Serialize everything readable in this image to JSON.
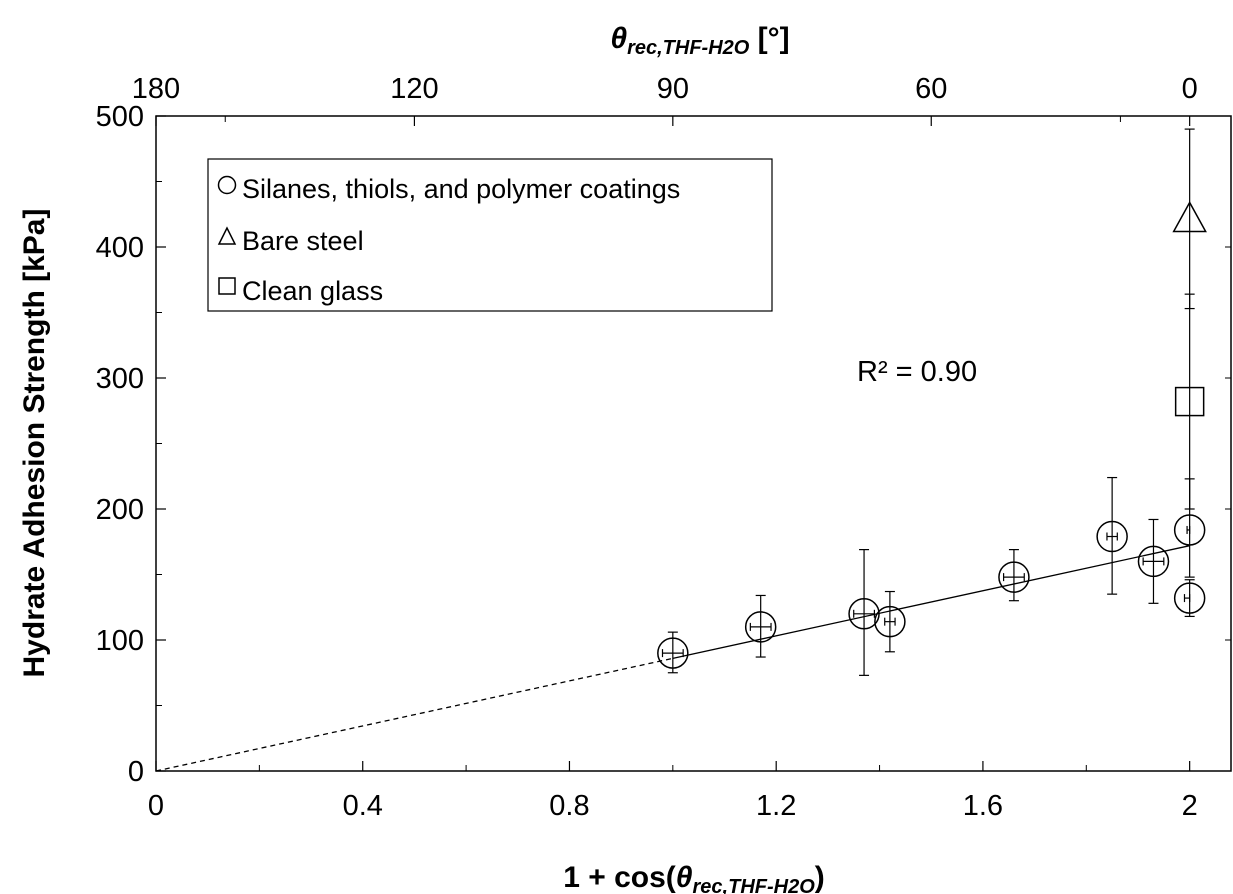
{
  "chart_data": {
    "type": "scatter",
    "title": "",
    "xlabel": "1 + cos(θrec,THF-H2O)",
    "xlabel_parts": {
      "prefix": "1 + cos(",
      "symbol": "θ",
      "subscript": "rec,THF-H2O",
      "suffix": ")"
    },
    "ylabel": "Hydrate Adhesion Strength [kPa]",
    "top_xlabel": "θrec,THF-H2O [°]",
    "top_xlabel_parts": {
      "symbol": "θ",
      "subscript": "rec,THF-H2O",
      "suffix": " [°]"
    },
    "xlim": [
      0,
      2.08
    ],
    "ylim": [
      0,
      500
    ],
    "xticks": [
      0,
      0.4,
      0.8,
      1.2,
      1.6,
      2
    ],
    "xtick_labels": [
      "0",
      "0.4",
      "0.8",
      "1.2",
      "1.6",
      "2"
    ],
    "yticks": [
      0,
      100,
      200,
      300,
      400,
      500
    ],
    "ytick_labels": [
      "0",
      "100",
      "200",
      "300",
      "400",
      "500"
    ],
    "top_xticks_deg": [
      180,
      120,
      90,
      60,
      0
    ],
    "top_xtick_labels": [
      "180",
      "120",
      "90",
      "60",
      "0"
    ],
    "grid": false,
    "legend_position": "top-left",
    "annotation": "R² = 0.90",
    "series": [
      {
        "name": "Silanes, thiols, and polymer coatings",
        "marker": "circle",
        "points": [
          {
            "x": 1.0,
            "y": 90,
            "yerr": [
              75,
              106
            ],
            "xerr": [
              0.98,
              1.02
            ]
          },
          {
            "x": 1.17,
            "y": 110,
            "yerr": [
              87,
              134
            ],
            "xerr": [
              1.15,
              1.19
            ]
          },
          {
            "x": 1.37,
            "y": 120,
            "yerr": [
              73,
              169
            ],
            "xerr": [
              1.35,
              1.39
            ]
          },
          {
            "x": 1.42,
            "y": 114,
            "yerr": [
              91,
              137
            ],
            "xerr": [
              1.41,
              1.43
            ]
          },
          {
            "x": 1.66,
            "y": 148,
            "yerr": [
              130,
              169
            ],
            "xerr": [
              1.64,
              1.68
            ]
          },
          {
            "x": 1.85,
            "y": 179,
            "yerr": [
              135,
              224
            ],
            "xerr": [
              1.84,
              1.86
            ]
          },
          {
            "x": 1.93,
            "y": 160,
            "yerr": [
              128,
              192
            ],
            "xerr": [
              1.91,
              1.95
            ]
          },
          {
            "x": 2.0,
            "y": 184,
            "yerr": [
              148,
              223
            ],
            "xerr": [
              1.995,
              2.0
            ]
          },
          {
            "x": 2.0,
            "y": 132,
            "yerr": [
              118,
              146
            ],
            "xerr": [
              1.99,
              2.0
            ]
          }
        ]
      },
      {
        "name": "Bare steel",
        "marker": "triangle",
        "points": [
          {
            "x": 2.0,
            "y": 421,
            "yerr": [
              353,
              490
            ]
          }
        ]
      },
      {
        "name": "Clean glass",
        "marker": "square",
        "points": [
          {
            "x": 2.0,
            "y": 282,
            "yerr": [
              200,
              364
            ]
          }
        ]
      }
    ],
    "fit_line": {
      "x": [
        1.0,
        2.0
      ],
      "y": [
        86,
        172
      ]
    },
    "extrapolation_line": {
      "x": [
        0,
        1.0
      ],
      "y": [
        0,
        86
      ]
    }
  }
}
